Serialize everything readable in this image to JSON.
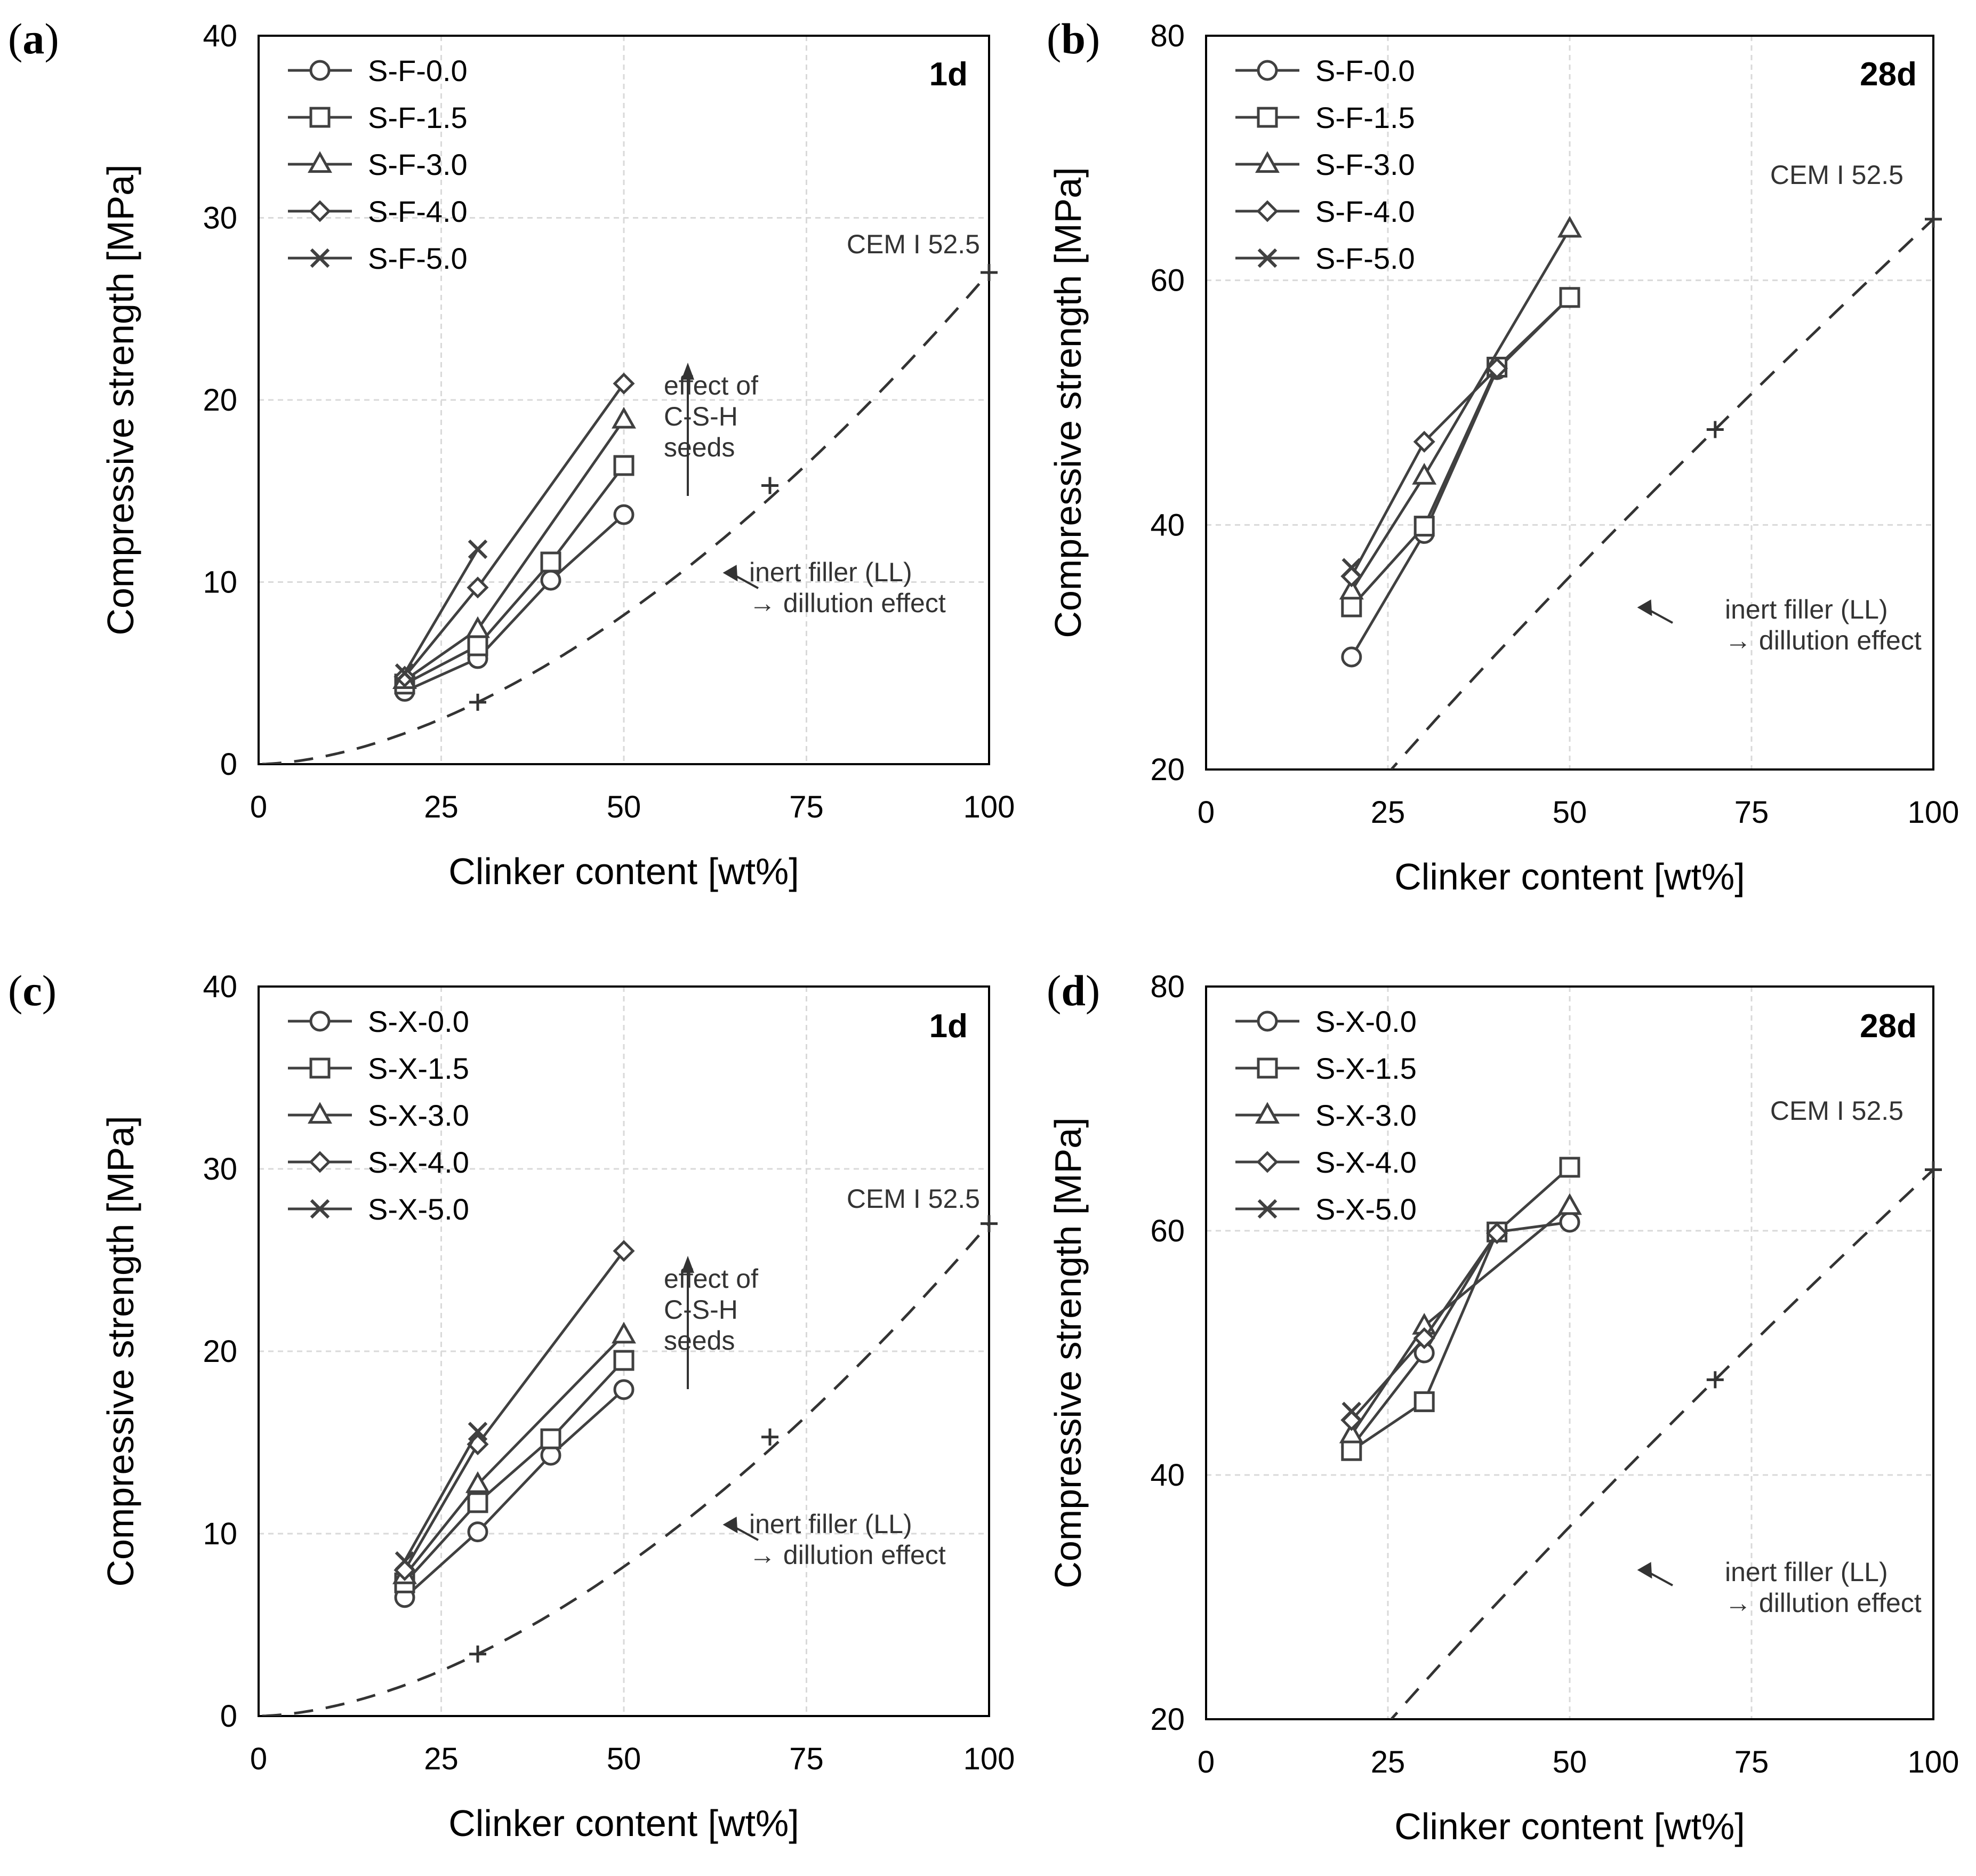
{
  "figure": {
    "panels": [
      "a",
      "b",
      "c",
      "d"
    ]
  },
  "chart_data": [
    {
      "panel": "a",
      "type": "line",
      "panel_label": "a",
      "age_label": "1d",
      "xlabel": "Clinker content [wt%]",
      "ylabel": "Compressive strength [MPa]",
      "xlim": [
        0,
        100
      ],
      "ylim": [
        0,
        40
      ],
      "xticks": [
        "0",
        "25",
        "50",
        "75",
        "100"
      ],
      "yticks": [
        "0",
        "10",
        "20",
        "30",
        "40"
      ],
      "grid": true,
      "legend_position": "top-left",
      "series": [
        {
          "name": "S-F-0.0",
          "marker": "circle",
          "x": [
            20,
            30,
            40,
            50
          ],
          "values": [
            4.0,
            5.8,
            10.1,
            13.7
          ]
        },
        {
          "name": "S-F-1.5",
          "marker": "square",
          "x": [
            20,
            30,
            40,
            50
          ],
          "values": [
            4.4,
            6.5,
            11.1,
            16.4
          ]
        },
        {
          "name": "S-F-3.0",
          "marker": "triangle",
          "x": [
            20,
            30,
            50
          ],
          "values": [
            4.6,
            7.4,
            18.9
          ]
        },
        {
          "name": "S-F-4.0",
          "marker": "diamond",
          "x": [
            20,
            30,
            50
          ],
          "values": [
            4.8,
            9.7,
            20.9
          ]
        },
        {
          "name": "S-F-5.0",
          "marker": "x",
          "x": [
            20,
            30
          ],
          "values": [
            5.0,
            11.8
          ]
        }
      ],
      "reference": {
        "label": "CEM I 52.5",
        "points_x": [
          30,
          70,
          100
        ],
        "points_y": [
          3.4,
          15.3,
          27.0
        ]
      },
      "annotations": [
        {
          "text_lines": [
            "effect of",
            "C-S-H",
            "seeds"
          ],
          "arrow": true
        },
        {
          "text_lines": [
            "inert filler (LL)",
            "→ dillution effect"
          ],
          "arrow": true
        }
      ]
    },
    {
      "panel": "b",
      "type": "line",
      "panel_label": "b",
      "age_label": "28d",
      "xlabel": "Clinker content [wt%]",
      "ylabel": "Compressive strength [MPa]",
      "xlim": [
        0,
        100
      ],
      "ylim": [
        20,
        80
      ],
      "xticks": [
        "0",
        "25",
        "50",
        "75",
        "100"
      ],
      "yticks": [
        "20",
        "40",
        "60",
        "80"
      ],
      "grid": true,
      "legend_position": "top-left",
      "series": [
        {
          "name": "S-F-0.0",
          "marker": "circle",
          "x": [
            20,
            30,
            40,
            50
          ],
          "values": [
            29.2,
            39.3,
            52.7,
            58.6
          ]
        },
        {
          "name": "S-F-1.5",
          "marker": "square",
          "x": [
            20,
            30,
            40,
            50
          ],
          "values": [
            33.3,
            39.9,
            52.9,
            58.6
          ]
        },
        {
          "name": "S-F-3.0",
          "marker": "triangle",
          "x": [
            20,
            30,
            50
          ],
          "values": [
            34.6,
            44.0,
            64.2
          ]
        },
        {
          "name": "S-F-4.0",
          "marker": "diamond",
          "x": [
            20,
            30,
            40
          ],
          "values": [
            35.8,
            46.8,
            52.8
          ]
        },
        {
          "name": "S-F-5.0",
          "marker": "x",
          "x": [
            20
          ],
          "values": [
            36.5
          ]
        }
      ],
      "reference": {
        "label": "CEM I 52.5",
        "points_x": [
          70,
          100
        ],
        "points_y": [
          47.8,
          65.0
        ]
      },
      "annotations": [
        {
          "text_lines": [
            "inert filler (LL)",
            "→ dillution effect"
          ],
          "arrow": true
        }
      ]
    },
    {
      "panel": "c",
      "type": "line",
      "panel_label": "c",
      "age_label": "1d",
      "xlabel": "Clinker content [wt%]",
      "ylabel": "Compressive strength [MPa]",
      "xlim": [
        0,
        100
      ],
      "ylim": [
        0,
        40
      ],
      "xticks": [
        "0",
        "25",
        "50",
        "75",
        "100"
      ],
      "yticks": [
        "0",
        "10",
        "20",
        "30",
        "40"
      ],
      "grid": true,
      "legend_position": "top-left",
      "series": [
        {
          "name": "S-X-0.0",
          "marker": "circle",
          "x": [
            20,
            30,
            40,
            50
          ],
          "values": [
            6.5,
            10.1,
            14.3,
            17.9
          ]
        },
        {
          "name": "S-X-1.5",
          "marker": "square",
          "x": [
            20,
            30,
            40,
            50
          ],
          "values": [
            7.3,
            11.7,
            15.2,
            19.5
          ]
        },
        {
          "name": "S-X-3.0",
          "marker": "triangle",
          "x": [
            20,
            30,
            50
          ],
          "values": [
            7.7,
            12.7,
            20.9
          ]
        },
        {
          "name": "S-X-4.0",
          "marker": "diamond",
          "x": [
            20,
            30,
            50
          ],
          "values": [
            8.0,
            14.9,
            25.5
          ]
        },
        {
          "name": "S-X-5.0",
          "marker": "x",
          "x": [
            20,
            30
          ],
          "values": [
            8.5,
            15.6
          ]
        }
      ],
      "reference": {
        "label": "CEM I 52.5",
        "points_x": [
          30,
          70,
          100
        ],
        "points_y": [
          3.4,
          15.3,
          27.0
        ]
      },
      "annotations": [
        {
          "text_lines": [
            "effect of",
            "C-S-H",
            "seeds"
          ],
          "arrow": true
        },
        {
          "text_lines": [
            "inert filler (LL)",
            "→ dillution effect"
          ],
          "arrow": true
        }
      ]
    },
    {
      "panel": "d",
      "type": "line",
      "panel_label": "d",
      "age_label": "28d",
      "xlabel": "Clinker content [wt%]",
      "ylabel": "Compressive strength [MPa]",
      "xlim": [
        0,
        100
      ],
      "ylim": [
        20,
        80
      ],
      "xticks": [
        "0",
        "25",
        "50",
        "75",
        "100"
      ],
      "yticks": [
        "20",
        "40",
        "60",
        "80"
      ],
      "grid": true,
      "legend_position": "top-left",
      "series": [
        {
          "name": "S-X-0.0",
          "marker": "circle",
          "x": [
            20,
            30,
            40,
            50
          ],
          "values": [
            42.3,
            50.0,
            59.9,
            60.7
          ]
        },
        {
          "name": "S-X-1.5",
          "marker": "square",
          "x": [
            20,
            30,
            40,
            50
          ],
          "values": [
            42.0,
            46.0,
            59.9,
            65.2
          ]
        },
        {
          "name": "S-X-3.0",
          "marker": "triangle",
          "x": [
            20,
            30,
            50
          ],
          "values": [
            43.3,
            52.2,
            62.0
          ]
        },
        {
          "name": "S-X-4.0",
          "marker": "diamond",
          "x": [
            20,
            30,
            40
          ],
          "values": [
            44.5,
            51.2,
            59.8
          ]
        },
        {
          "name": "S-X-5.0",
          "marker": "x",
          "x": [
            20
          ],
          "values": [
            45.2
          ]
        }
      ],
      "reference": {
        "label": "CEM I 52.5",
        "points_x": [
          70,
          100
        ],
        "points_y": [
          47.8,
          65.0
        ]
      },
      "annotations": [
        {
          "text_lines": [
            "inert filler (LL)",
            "→ dillution effect"
          ],
          "arrow": true
        }
      ]
    }
  ]
}
